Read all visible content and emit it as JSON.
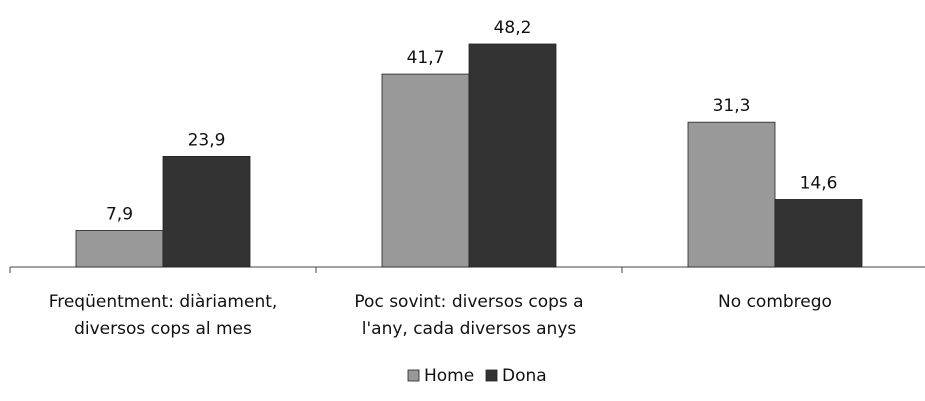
{
  "chart_data": {
    "type": "bar",
    "categories": [
      [
        "Freqüentment: diàriament,",
        "diversos cops al mes"
      ],
      [
        "Poc sovint: diversos cops a",
        "l'any, cada diversos anys"
      ],
      [
        "No combrego"
      ]
    ],
    "series": [
      {
        "name": "Home",
        "color": "#999999",
        "values": [
          7.9,
          41.7,
          31.3
        ],
        "labels": [
          "7,9",
          "41,7",
          "31,3"
        ]
      },
      {
        "name": "Dona",
        "color": "#333333",
        "values": [
          23.9,
          48.2,
          14.6
        ],
        "labels": [
          "23,9",
          "48,2",
          "14,6"
        ]
      }
    ],
    "ylim": [
      0,
      48.2
    ],
    "grid": false,
    "legend_position": "bottom-center"
  }
}
